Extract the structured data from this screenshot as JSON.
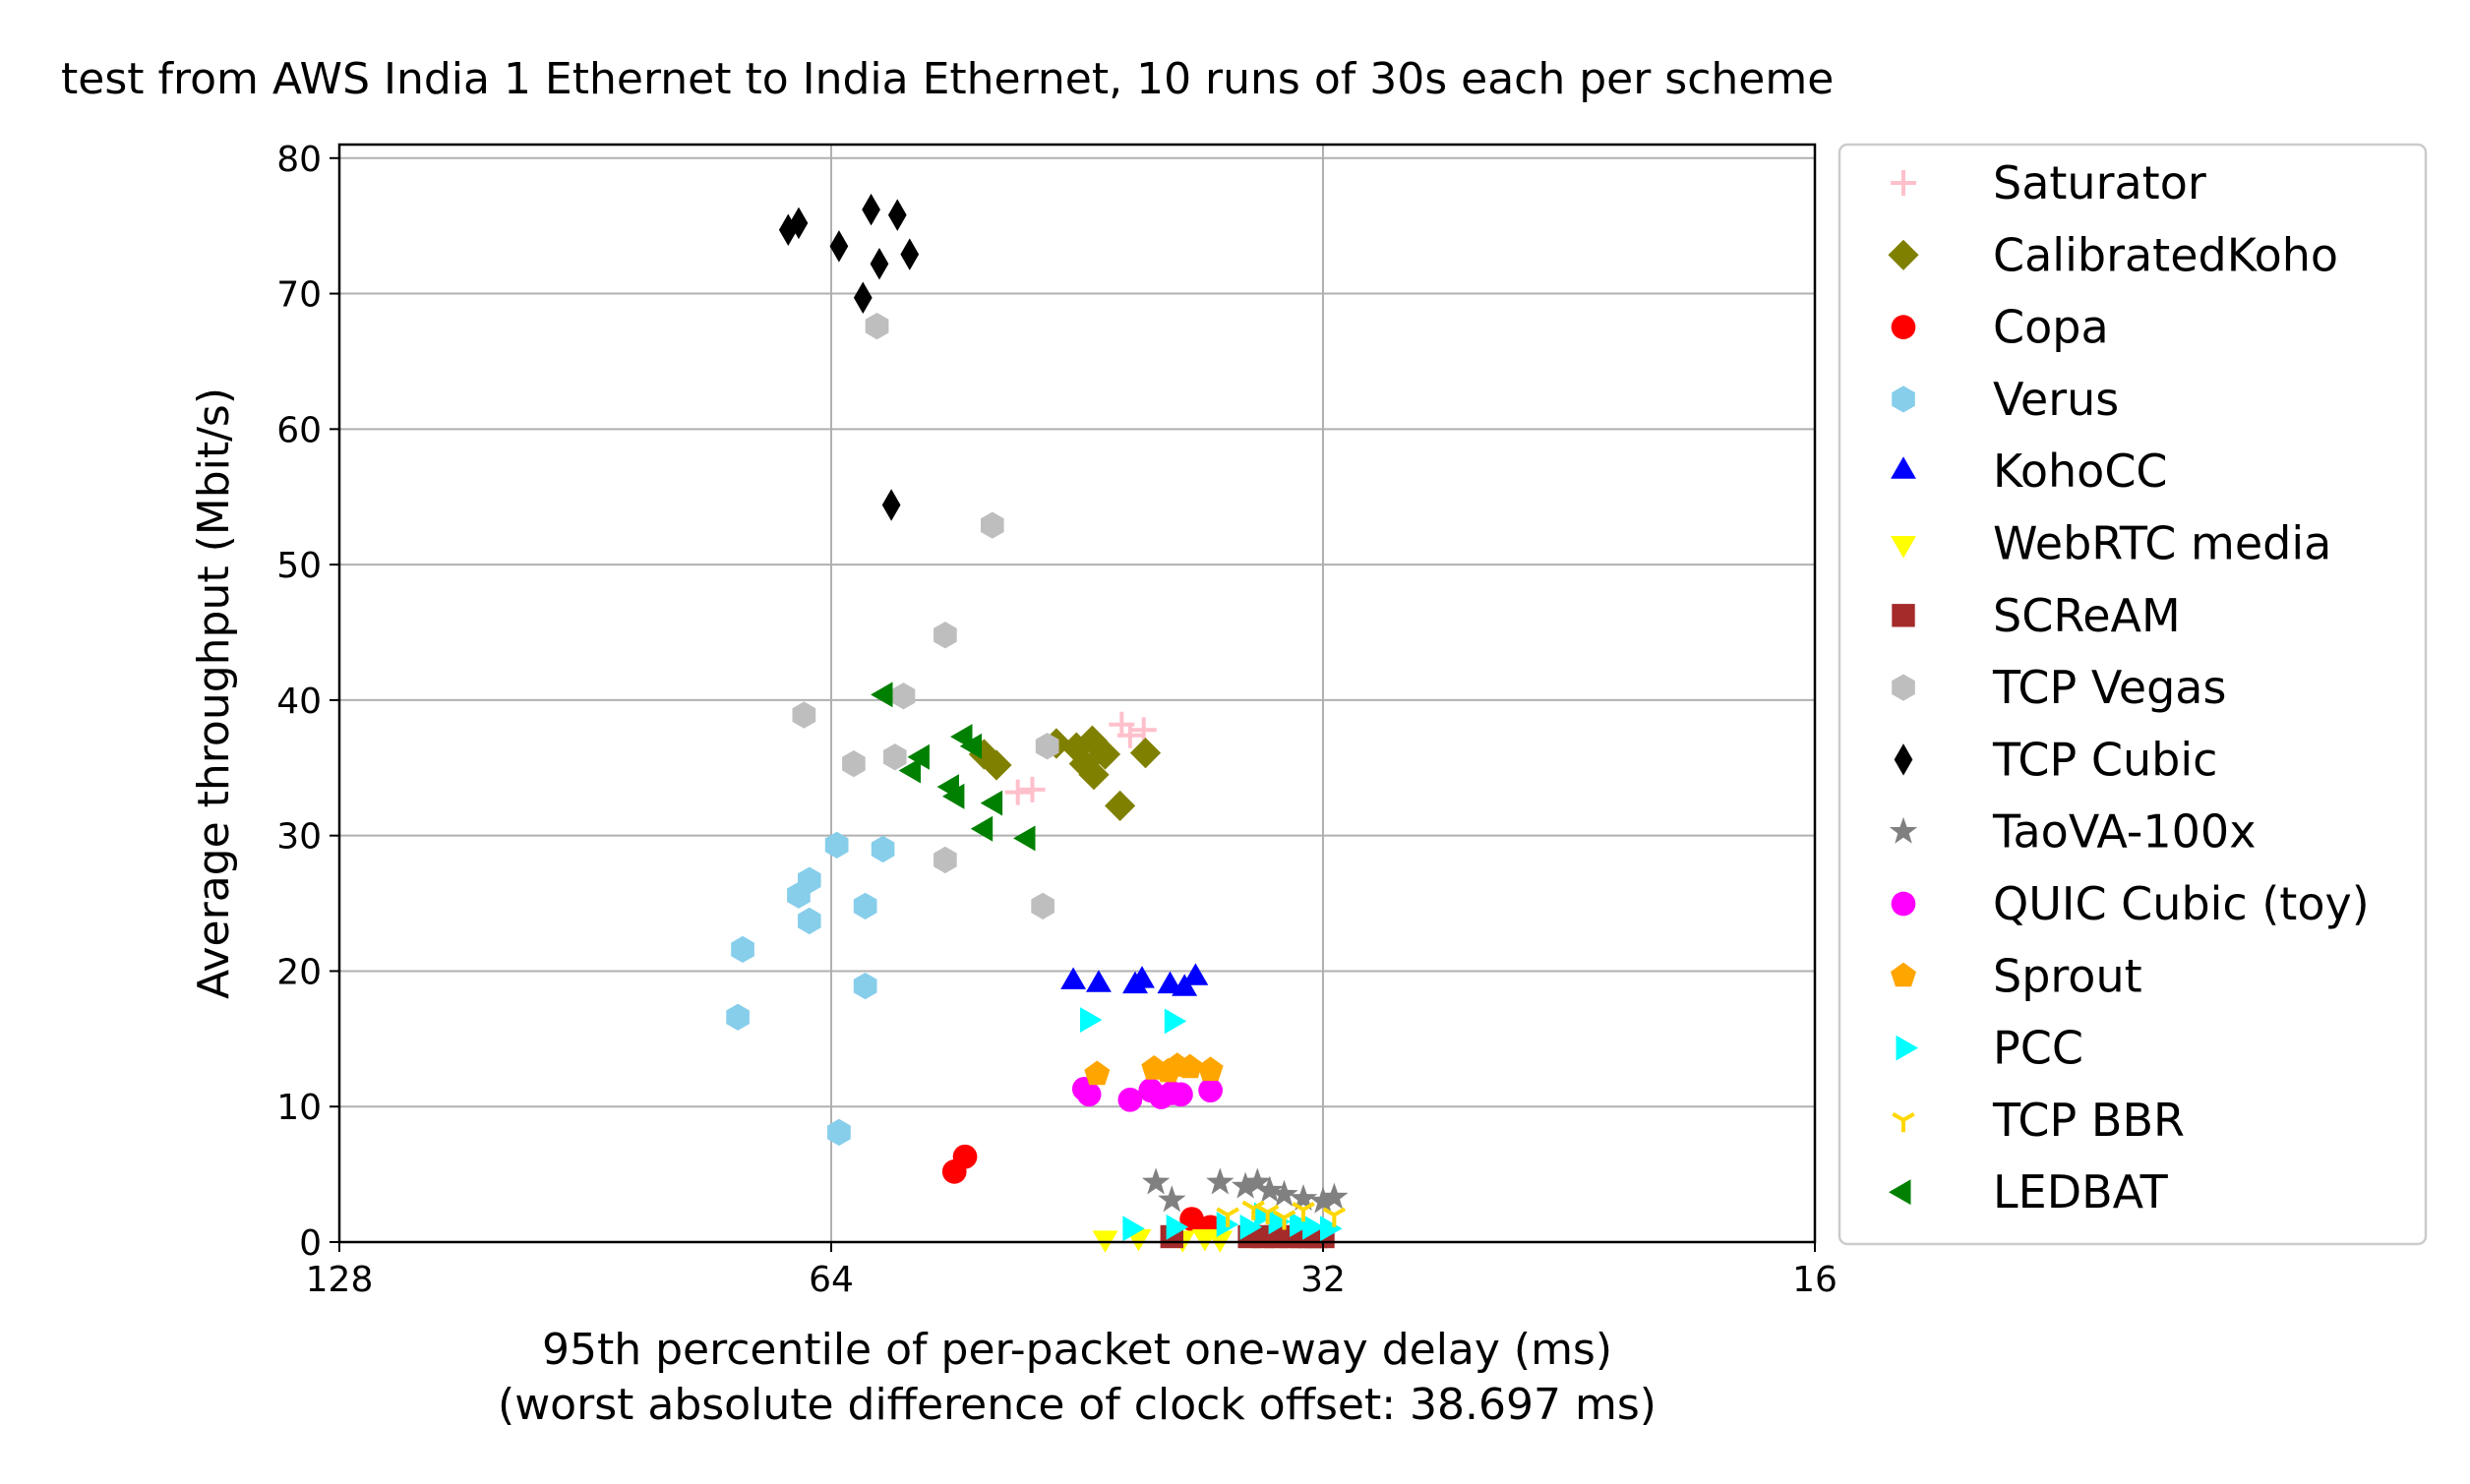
{
  "chart_data": {
    "type": "scatter",
    "title": "test from AWS India 1 Ethernet to India Ethernet, 10 runs of 30s each per scheme",
    "xlabel": "95th percentile of per-packet one-way delay (ms)",
    "xlabel_note": "(worst absolute difference of clock offset: 38.697 ms)",
    "ylabel": "Average throughput (Mbit/s)",
    "x_scale": "log2",
    "x_inverted": true,
    "xlim": [
      128,
      16
    ],
    "ylim": [
      0,
      81
    ],
    "x_ticks": [
      128,
      64,
      32,
      16
    ],
    "x_tick_labels": [
      "128",
      "64",
      "32",
      "16"
    ],
    "y_ticks": [
      0,
      10,
      20,
      30,
      40,
      50,
      60,
      70,
      80
    ],
    "y_tick_labels": [
      "0",
      "10",
      "20",
      "30",
      "40",
      "50",
      "60",
      "70",
      "80"
    ],
    "grid": true,
    "legend_position": "outside-right",
    "series": [
      {
        "name": "Saturator",
        "marker": "plus",
        "color": "#ffc0cb",
        "points": [
          [
            42.5,
            38.2
          ],
          [
            42.0,
            37.4
          ],
          [
            41.2,
            37.8
          ],
          [
            49.2,
            33.2
          ],
          [
            48.2,
            33.4
          ]
        ]
      },
      {
        "name": "CalibratedKoho",
        "marker": "diamond",
        "color": "#808000",
        "points": [
          [
            51.6,
            36.0
          ],
          [
            50.7,
            35.2
          ],
          [
            46.6,
            36.8
          ],
          [
            45.3,
            36.5
          ],
          [
            44.8,
            35.3
          ],
          [
            44.2,
            34.5
          ],
          [
            44.3,
            37.0
          ],
          [
            43.5,
            36.0
          ],
          [
            42.6,
            32.2
          ],
          [
            41.1,
            36.1
          ]
        ]
      },
      {
        "name": "Copa",
        "marker": "circle",
        "color": "#ff0000",
        "points": [
          [
            53.8,
            5.2
          ],
          [
            53.0,
            6.3
          ],
          [
            38.5,
            1.7
          ],
          [
            37.5,
            1.1
          ]
        ]
      },
      {
        "name": "Verus",
        "marker": "hexagon",
        "color": "#87ceeb",
        "points": [
          [
            63.5,
            29.3
          ],
          [
            59.5,
            29.0
          ],
          [
            61.0,
            24.8
          ],
          [
            66.0,
            26.7
          ],
          [
            67.0,
            25.6
          ],
          [
            66.0,
            23.7
          ],
          [
            72.5,
            21.6
          ],
          [
            73.0,
            16.6
          ],
          [
            61.0,
            18.9
          ],
          [
            63.3,
            8.1
          ]
        ]
      },
      {
        "name": "KohoCC",
        "marker": "triangle-up",
        "color": "#0000ff",
        "points": [
          [
            45.5,
            19.2
          ],
          [
            43.9,
            19.0
          ],
          [
            41.7,
            18.9
          ],
          [
            41.3,
            19.3
          ],
          [
            39.7,
            18.9
          ],
          [
            38.9,
            18.7
          ],
          [
            38.3,
            19.5
          ]
        ]
      },
      {
        "name": "WebRTC media",
        "marker": "triangle-down",
        "color": "#ffff00",
        "points": [
          [
            43.5,
            0.3
          ],
          [
            41.5,
            0.4
          ],
          [
            39.0,
            0.3
          ],
          [
            37.8,
            0.4
          ],
          [
            37.0,
            0.3
          ]
        ]
      },
      {
        "name": "SCReAM",
        "marker": "square",
        "color": "#a52a2a",
        "points": [
          [
            39.6,
            0.4
          ],
          [
            35.5,
            0.4
          ],
          [
            34.8,
            0.4
          ],
          [
            34.2,
            0.4
          ],
          [
            33.5,
            0.4
          ],
          [
            33.0,
            0.4
          ],
          [
            32.6,
            0.4
          ],
          [
            32.3,
            0.4
          ],
          [
            32.0,
            0.4
          ]
        ]
      },
      {
        "name": "TCP Vegas",
        "marker": "hexagon",
        "color": "#bebebe",
        "points": [
          [
            60.0,
            67.6
          ],
          [
            51.0,
            52.9
          ],
          [
            54.5,
            44.8
          ],
          [
            66.5,
            38.9
          ],
          [
            57.8,
            40.3
          ],
          [
            62.0,
            35.3
          ],
          [
            58.5,
            35.8
          ],
          [
            54.5,
            28.2
          ],
          [
            47.2,
            36.6
          ],
          [
            47.5,
            24.8
          ]
        ]
      },
      {
        "name": "TCP Cubic",
        "marker": "thin-diamond",
        "color": "#000000",
        "points": [
          [
            60.5,
            76.2
          ],
          [
            58.3,
            75.8
          ],
          [
            67.0,
            75.2
          ],
          [
            68.0,
            74.7
          ],
          [
            63.3,
            73.5
          ],
          [
            57.3,
            72.9
          ],
          [
            59.8,
            72.2
          ],
          [
            61.2,
            69.7
          ],
          [
            58.8,
            54.4
          ]
        ]
      },
      {
        "name": "TaoVA-100x",
        "marker": "star",
        "color": "#808080",
        "points": [
          [
            40.5,
            4.4
          ],
          [
            39.6,
            3.1
          ],
          [
            37.0,
            4.4
          ],
          [
            35.7,
            4.1
          ],
          [
            35.1,
            4.4
          ],
          [
            34.5,
            3.8
          ],
          [
            33.8,
            3.5
          ],
          [
            32.9,
            3.2
          ],
          [
            32.0,
            3.0
          ],
          [
            31.5,
            3.3
          ]
        ]
      },
      {
        "name": "QUIC Cubic (toy)",
        "marker": "circle",
        "color": "#ff00ff",
        "points": [
          [
            44.8,
            11.3
          ],
          [
            44.5,
            10.9
          ],
          [
            42.0,
            10.5
          ],
          [
            40.8,
            11.2
          ],
          [
            40.2,
            10.7
          ],
          [
            39.6,
            11.0
          ],
          [
            39.1,
            10.9
          ],
          [
            37.5,
            11.2
          ]
        ]
      },
      {
        "name": "Sprout",
        "marker": "pentagon",
        "color": "#ffa500",
        "points": [
          [
            44.0,
            12.4
          ],
          [
            40.6,
            12.8
          ],
          [
            39.8,
            12.6
          ],
          [
            39.3,
            13.0
          ],
          [
            38.6,
            12.9
          ],
          [
            37.5,
            12.7
          ]
        ]
      },
      {
        "name": "PCC",
        "marker": "triangle-right",
        "color": "#00ffff",
        "points": [
          [
            44.6,
            16.4
          ],
          [
            39.6,
            16.3
          ],
          [
            42.0,
            1.0
          ],
          [
            39.5,
            1.1
          ],
          [
            36.8,
            1.3
          ],
          [
            35.6,
            1.1
          ],
          [
            34.9,
            2.0
          ],
          [
            34.2,
            1.5
          ],
          [
            33.2,
            1.3
          ],
          [
            32.6,
            1.1
          ],
          [
            31.8,
            1.0
          ]
        ]
      },
      {
        "name": "TCP BBR",
        "marker": "tri-down",
        "color": "#ffd700",
        "points": [
          [
            36.6,
            2.0
          ],
          [
            35.3,
            2.5
          ],
          [
            34.6,
            2.2
          ],
          [
            33.8,
            1.8
          ],
          [
            32.9,
            2.4
          ],
          [
            31.5,
            2.0
          ]
        ]
      },
      {
        "name": "LEDBAT",
        "marker": "triangle-left",
        "color": "#008000",
        "points": [
          [
            59.3,
            40.4
          ],
          [
            56.3,
            35.8
          ],
          [
            57.0,
            34.8
          ],
          [
            54.0,
            33.6
          ],
          [
            53.6,
            32.9
          ],
          [
            53.0,
            37.3
          ],
          [
            52.3,
            36.6
          ],
          [
            51.5,
            30.5
          ],
          [
            50.8,
            32.4
          ],
          [
            48.5,
            29.8
          ]
        ]
      }
    ]
  }
}
